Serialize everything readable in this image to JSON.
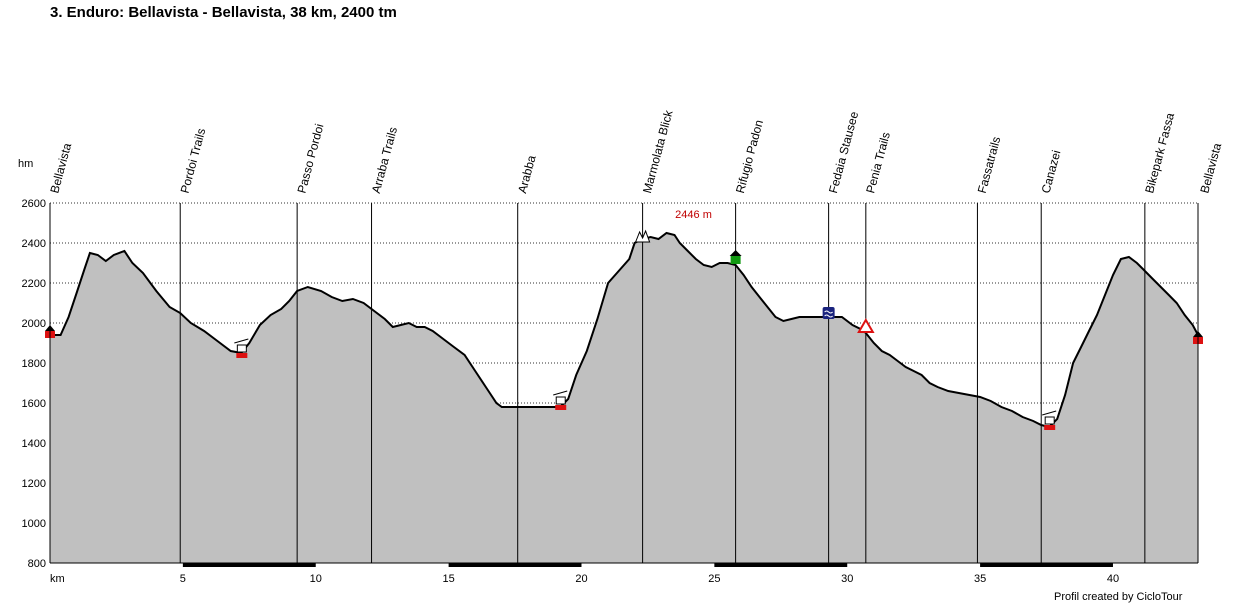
{
  "colors": {
    "profile_fill": "#c0c0c0",
    "profile_line": "#000000",
    "peak_label": "#c00000",
    "grid": "#000000",
    "marker_red": "#dd1111",
    "marker_green": "#119911",
    "marker_blue": "#1a237e"
  },
  "chart_data": {
    "type": "area",
    "title": "3. Enduro: Bellavista - Bellavista, 38 km, 2400 tm",
    "xlabel": "km",
    "ylabel": "hm",
    "xlim": [
      0,
      43.2
    ],
    "ylim": [
      800,
      2600
    ],
    "x_ticks": [
      5,
      10,
      15,
      20,
      25,
      30,
      35,
      40
    ],
    "y_ticks": [
      800,
      1000,
      1200,
      1400,
      1600,
      1800,
      2000,
      2200,
      2400,
      2600
    ],
    "grid": "horizontal dotted",
    "peak_label": {
      "text": "2446 m",
      "x": 23.3,
      "y": 2446
    },
    "credit": "Profil created by CicloTour",
    "waypoints": [
      {
        "name": "Bellavista",
        "x": 0.0
      },
      {
        "name": "Pordoi Trails",
        "x": 4.9
      },
      {
        "name": "Passo Pordoi",
        "x": 9.3
      },
      {
        "name": "Arraba Trails",
        "x": 12.1
      },
      {
        "name": "Arabba",
        "x": 17.6
      },
      {
        "name": "Marmolata Blick",
        "x": 22.3
      },
      {
        "name": "Rifugio Padon",
        "x": 25.8
      },
      {
        "name": "Fedaia Stausee",
        "x": 29.3
      },
      {
        "name": "Penia Trails",
        "x": 30.7
      },
      {
        "name": "Fassatrails",
        "x": 34.9
      },
      {
        "name": "Canazei",
        "x": 37.3
      },
      {
        "name": "Bikepark Fassa",
        "x": 41.2
      },
      {
        "name": "Bellavista",
        "x": 43.2
      }
    ],
    "markers": [
      {
        "icon": "red-flag-icon",
        "x": 0.0,
        "y": 1950
      },
      {
        "icon": "gondola-icon",
        "x": 7.2,
        "y": 1860
      },
      {
        "icon": "gondola-icon",
        "x": 19.2,
        "y": 1600
      },
      {
        "icon": "summit-icon",
        "x": 22.3,
        "y": 2430
      },
      {
        "icon": "hut-icon",
        "x": 25.8,
        "y": 2330
      },
      {
        "icon": "lake-icon",
        "x": 29.3,
        "y": 2050
      },
      {
        "icon": "warning-triangle-icon",
        "x": 30.7,
        "y": 1980
      },
      {
        "icon": "gondola-icon",
        "x": 37.6,
        "y": 1500
      },
      {
        "icon": "red-flag-icon",
        "x": 43.2,
        "y": 1920
      }
    ],
    "series": [
      {
        "x": [
          0.0,
          0.4,
          0.7,
          1.0,
          1.3,
          1.5,
          1.8,
          2.1,
          2.4,
          2.8,
          3.1,
          3.5,
          4.0,
          4.5,
          4.9,
          5.3,
          5.8,
          6.3,
          6.8,
          7.2,
          7.5,
          7.9,
          8.3,
          8.7,
          9.0,
          9.3,
          9.7,
          10.2,
          10.6,
          11.0,
          11.4,
          11.8,
          12.2,
          12.6,
          12.9,
          13.2,
          13.5,
          13.8,
          14.1,
          14.4,
          14.8,
          15.2,
          15.6,
          16.0,
          16.4,
          16.6,
          16.8,
          17.0,
          17.6,
          18.2,
          18.8,
          19.2,
          19.5,
          19.8,
          20.2,
          20.6,
          21.0,
          21.4,
          21.8,
          22.0,
          22.3,
          22.6,
          22.9,
          23.2,
          23.5,
          23.7,
          24.0,
          24.3,
          24.6,
          24.9,
          25.2,
          25.5,
          25.8,
          26.1,
          26.4,
          26.7,
          27.0,
          27.3,
          27.6,
          27.9,
          28.2,
          28.6,
          29.0,
          29.4,
          29.8,
          30.2,
          30.5,
          30.7,
          31.0,
          31.3,
          31.6,
          31.9,
          32.2,
          32.5,
          32.8,
          33.1,
          33.4,
          33.8,
          34.2,
          34.6,
          35.0,
          35.4,
          35.8,
          36.2,
          36.6,
          37.0,
          37.3,
          37.6,
          37.9,
          38.2,
          38.5,
          38.8,
          39.1,
          39.4,
          39.7,
          40.0,
          40.3,
          40.6,
          40.9,
          41.2,
          41.5,
          41.8,
          42.1,
          42.4,
          42.7,
          43.0,
          43.2
        ],
        "values": [
          1940,
          1940,
          2030,
          2150,
          2270,
          2350,
          2340,
          2310,
          2340,
          2360,
          2300,
          2250,
          2160,
          2080,
          2050,
          2000,
          1960,
          1910,
          1860,
          1850,
          1900,
          1990,
          2040,
          2070,
          2110,
          2160,
          2180,
          2160,
          2130,
          2110,
          2120,
          2100,
          2060,
          2020,
          1980,
          1990,
          2000,
          1980,
          1980,
          1960,
          1920,
          1880,
          1840,
          1760,
          1680,
          1640,
          1600,
          1580,
          1580,
          1580,
          1580,
          1580,
          1620,
          1740,
          1860,
          2020,
          2200,
          2260,
          2320,
          2400,
          2420,
          2430,
          2420,
          2450,
          2440,
          2400,
          2360,
          2320,
          2290,
          2280,
          2300,
          2300,
          2290,
          2240,
          2180,
          2130,
          2080,
          2030,
          2010,
          2020,
          2030,
          2030,
          2030,
          2030,
          2030,
          1990,
          1970,
          1950,
          1900,
          1860,
          1840,
          1810,
          1780,
          1760,
          1740,
          1700,
          1680,
          1660,
          1650,
          1640,
          1630,
          1610,
          1580,
          1560,
          1530,
          1510,
          1490,
          1480,
          1520,
          1640,
          1800,
          1880,
          1960,
          2040,
          2140,
          2240,
          2320,
          2330,
          2300,
          2260,
          2220,
          2180,
          2140,
          2100,
          2040,
          1990,
          1940
        ]
      }
    ]
  }
}
